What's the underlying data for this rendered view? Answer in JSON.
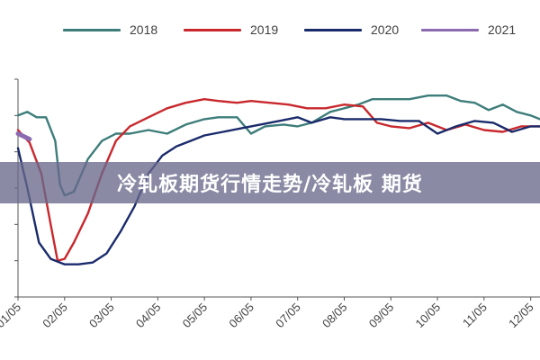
{
  "banner": {
    "text": "冷轧板期货行情走势/冷轧板 期货"
  },
  "chart_data": {
    "type": "line",
    "title": "",
    "xlabel": "",
    "ylabel": "",
    "x_ticks": [
      "01/05",
      "02/05",
      "03/05",
      "04/05",
      "05/05",
      "06/05",
      "07/05",
      "08/05",
      "09/05",
      "10/05",
      "11/05",
      "12/05"
    ],
    "x_range": [
      1,
      12.2
    ],
    "y_range": [
      0,
      6
    ],
    "grid": false,
    "legend_position": "top",
    "series": [
      {
        "name": "2018",
        "color": "#3d7d7a",
        "points": [
          [
            1.0,
            5.0
          ],
          [
            1.2,
            5.1
          ],
          [
            1.4,
            4.95
          ],
          [
            1.6,
            4.95
          ],
          [
            1.8,
            4.3
          ],
          [
            1.9,
            3.1
          ],
          [
            2.0,
            2.8
          ],
          [
            2.2,
            2.9
          ],
          [
            2.5,
            3.8
          ],
          [
            2.8,
            4.3
          ],
          [
            3.1,
            4.5
          ],
          [
            3.4,
            4.5
          ],
          [
            3.8,
            4.6
          ],
          [
            4.2,
            4.5
          ],
          [
            4.6,
            4.75
          ],
          [
            5.0,
            4.9
          ],
          [
            5.3,
            4.95
          ],
          [
            5.7,
            4.95
          ],
          [
            6.0,
            4.5
          ],
          [
            6.3,
            4.7
          ],
          [
            6.7,
            4.75
          ],
          [
            7.0,
            4.7
          ],
          [
            7.3,
            4.8
          ],
          [
            7.7,
            5.1
          ],
          [
            8.0,
            5.2
          ],
          [
            8.3,
            5.3
          ],
          [
            8.6,
            5.45
          ],
          [
            9.0,
            5.45
          ],
          [
            9.4,
            5.45
          ],
          [
            9.8,
            5.55
          ],
          [
            10.2,
            5.55
          ],
          [
            10.5,
            5.4
          ],
          [
            10.8,
            5.35
          ],
          [
            11.1,
            5.15
          ],
          [
            11.4,
            5.3
          ],
          [
            11.7,
            5.1
          ],
          [
            12.0,
            5.0
          ],
          [
            12.2,
            4.9
          ]
        ]
      },
      {
        "name": "2019",
        "color": "#c8282d",
        "points": [
          [
            1.0,
            4.6
          ],
          [
            1.25,
            4.25
          ],
          [
            1.5,
            3.4
          ],
          [
            1.7,
            2.0
          ],
          [
            1.85,
            1.0
          ],
          [
            2.0,
            1.05
          ],
          [
            2.2,
            1.5
          ],
          [
            2.5,
            2.3
          ],
          [
            2.8,
            3.4
          ],
          [
            3.1,
            4.3
          ],
          [
            3.4,
            4.7
          ],
          [
            3.8,
            4.95
          ],
          [
            4.2,
            5.2
          ],
          [
            4.6,
            5.35
          ],
          [
            5.0,
            5.45
          ],
          [
            5.3,
            5.4
          ],
          [
            5.7,
            5.35
          ],
          [
            6.0,
            5.4
          ],
          [
            6.4,
            5.35
          ],
          [
            6.8,
            5.3
          ],
          [
            7.2,
            5.2
          ],
          [
            7.6,
            5.2
          ],
          [
            8.0,
            5.3
          ],
          [
            8.4,
            5.25
          ],
          [
            8.7,
            4.8
          ],
          [
            9.0,
            4.7
          ],
          [
            9.4,
            4.65
          ],
          [
            9.8,
            4.8
          ],
          [
            10.2,
            4.6
          ],
          [
            10.6,
            4.75
          ],
          [
            11.0,
            4.6
          ],
          [
            11.4,
            4.55
          ],
          [
            11.8,
            4.7
          ],
          [
            12.2,
            4.7
          ]
        ]
      },
      {
        "name": "2020",
        "color": "#1a2b6b",
        "points": [
          [
            1.0,
            4.1
          ],
          [
            1.2,
            3.0
          ],
          [
            1.45,
            1.5
          ],
          [
            1.7,
            1.05
          ],
          [
            2.0,
            0.9
          ],
          [
            2.3,
            0.9
          ],
          [
            2.6,
            0.95
          ],
          [
            2.9,
            1.2
          ],
          [
            3.2,
            1.8
          ],
          [
            3.5,
            2.5
          ],
          [
            3.8,
            3.4
          ],
          [
            4.1,
            3.9
          ],
          [
            4.4,
            4.15
          ],
          [
            4.7,
            4.3
          ],
          [
            5.0,
            4.45
          ],
          [
            5.4,
            4.55
          ],
          [
            5.8,
            4.65
          ],
          [
            6.2,
            4.75
          ],
          [
            6.6,
            4.85
          ],
          [
            7.0,
            4.95
          ],
          [
            7.3,
            4.8
          ],
          [
            7.7,
            4.95
          ],
          [
            8.0,
            4.9
          ],
          [
            8.4,
            4.9
          ],
          [
            8.8,
            4.9
          ],
          [
            9.2,
            4.85
          ],
          [
            9.6,
            4.85
          ],
          [
            10.0,
            4.5
          ],
          [
            10.4,
            4.7
          ],
          [
            10.8,
            4.85
          ],
          [
            11.2,
            4.8
          ],
          [
            11.6,
            4.55
          ],
          [
            12.0,
            4.7
          ],
          [
            12.2,
            4.7
          ]
        ]
      },
      {
        "name": "2021",
        "color": "#8c6aaf",
        "points": [
          [
            1.0,
            4.5
          ],
          [
            1.25,
            4.35
          ]
        ]
      }
    ]
  }
}
